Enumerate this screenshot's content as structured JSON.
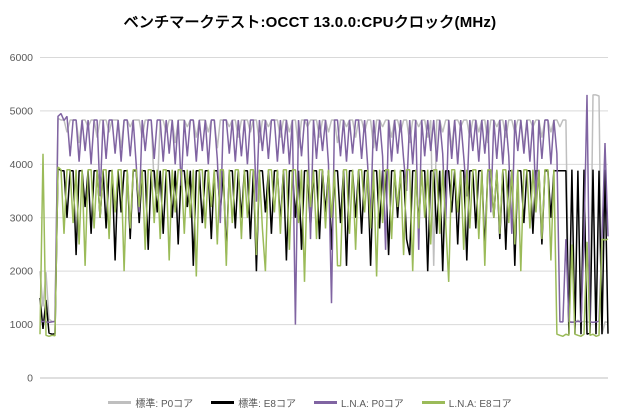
{
  "chart_data": {
    "type": "line",
    "title": "ベンチマークテスト:OCCT 13.0.0:CPUクロック(MHz)",
    "xlabel": "",
    "ylabel": "",
    "ylim": [
      0,
      6000
    ],
    "y_ticks": [
      0,
      1000,
      2000,
      3000,
      4000,
      5000,
      6000
    ],
    "x_tick_labels": [],
    "grid": true,
    "legend_position": "bottom",
    "gridline_color": "#d9d9d9",
    "axis_line_color": "#bfbfbf",
    "tick_label_color": "#595959",
    "series": [
      {
        "name": "標準: P0コア",
        "key": "std-p0",
        "color": "#bfbfbf",
        "values": [
          2000,
          1340,
          1980,
          1100,
          1060,
          1050,
          4860,
          4830,
          4830,
          4600,
          4830,
          4830,
          4830,
          4400,
          4830,
          4830,
          4700,
          4830,
          4830,
          4500,
          4830,
          4830,
          4830,
          4600,
          4830,
          4830,
          4830,
          4300,
          4830,
          4830,
          4700,
          4830,
          4830,
          4830,
          4500,
          4830,
          4830,
          4830,
          3600,
          3450,
          4830,
          4830,
          4600,
          4830,
          4830,
          4400,
          4830,
          4830,
          4830,
          4700,
          4830,
          4830,
          4500,
          4830,
          4830,
          4830,
          4600,
          4830,
          4830,
          4300,
          4830,
          4830,
          4830,
          4700,
          4830,
          4830,
          4500,
          4830,
          4830,
          4830,
          4600,
          4830,
          4830,
          4400,
          4830,
          4830,
          4700,
          4830,
          4830,
          4830,
          4500,
          4830,
          4830,
          4600,
          4830,
          4830,
          4300,
          4830,
          4830,
          4700,
          4830,
          4830,
          4830,
          4500,
          4830,
          4830,
          4600,
          4830,
          4830,
          4400,
          4830,
          4830,
          4700,
          4830,
          4830,
          4500,
          4830,
          4830,
          4600,
          4830,
          4830,
          4300,
          4830,
          4830,
          4700,
          4830,
          4830,
          4500,
          4830,
          4830,
          4600,
          4830,
          4830,
          4400,
          4830,
          4830,
          4700,
          4830,
          4830,
          4500,
          4830,
          2100,
          4830,
          4830,
          4600,
          4830,
          4830,
          4300,
          4830,
          4830,
          4700,
          4830,
          4830,
          4500,
          4830,
          4830,
          4600,
          4830,
          4830,
          4400,
          4830,
          4830,
          4700,
          4830,
          4830,
          4500,
          4830,
          4830,
          4600,
          4830,
          4830,
          4300,
          4830,
          4830,
          4700,
          4830,
          4830,
          4500,
          4830,
          4830,
          4600,
          4830,
          4830,
          4700,
          4830,
          4830,
          1060,
          1050,
          1040,
          1080,
          1050,
          1060,
          1050,
          1040,
          5300,
          5300,
          5280,
          820,
          1050,
          1040
        ]
      },
      {
        "name": "標準: E8コア",
        "key": "std-e8",
        "color": "#000000",
        "values": [
          1500,
          920,
          1460,
          840,
          820,
          830,
          3930,
          3880,
          3880,
          3000,
          3880,
          3880,
          2300,
          3880,
          3880,
          3200,
          3880,
          2700,
          3880,
          3880,
          3000,
          3880,
          2800,
          3880,
          3880,
          2200,
          3880,
          3100,
          3880,
          3880,
          2600,
          3880,
          3880,
          2900,
          3880,
          3880,
          2400,
          3880,
          3880,
          3100,
          3880,
          2700,
          3880,
          3880,
          3000,
          3880,
          2500,
          3880,
          3880,
          3200,
          3880,
          2100,
          3880,
          3880,
          2900,
          3880,
          3880,
          2600,
          3880,
          3880,
          3100,
          3880,
          2300,
          3880,
          3880,
          2800,
          3880,
          3000,
          3880,
          3880,
          2600,
          3880,
          2000,
          3880,
          3880,
          3100,
          3880,
          2700,
          3880,
          3880,
          2900,
          3880,
          2200,
          3880,
          3880,
          3000,
          3880,
          2400,
          3880,
          3880,
          2800,
          3880,
          3880,
          2600,
          3880,
          3100,
          3880,
          2400,
          3880,
          3880,
          2900,
          3880,
          2100,
          3880,
          3880,
          3000,
          3880,
          2700,
          3880,
          3880,
          2100,
          3880,
          3880,
          2800,
          3880,
          3880,
          2300,
          3880,
          3880,
          3000,
          3880,
          3880,
          2600,
          2300,
          3880,
          3880,
          2900,
          3880,
          3880,
          2000,
          3880,
          3880,
          2700,
          3880,
          2000,
          3880,
          3880,
          3100,
          3880,
          2500,
          3880,
          3880,
          2200,
          3880,
          3880,
          2800,
          3880,
          3880,
          2400,
          3880,
          3880,
          3000,
          3880,
          2600,
          3880,
          2400,
          3880,
          3880,
          2100,
          3880,
          3880,
          2900,
          3880,
          3880,
          2700,
          3880,
          3880,
          2500,
          3880,
          3880,
          3000,
          3880,
          3880,
          3880,
          3880,
          3880,
          820,
          3900,
          830,
          3880,
          820,
          3900,
          820,
          840,
          3900,
          820,
          3880,
          820,
          3900,
          830
        ]
      },
      {
        "name": "L.N.A: P0コア",
        "key": "lna-p0",
        "color": "#8064a2",
        "values": [
          1050,
          1060,
          1050,
          1040,
          1050,
          1060,
          4900,
          4950,
          4820,
          4900,
          4150,
          4830,
          4830,
          4050,
          4830,
          4250,
          4830,
          4000,
          4830,
          4830,
          3400,
          4830,
          4100,
          4830,
          4830,
          4200,
          4830,
          4050,
          4830,
          4830,
          4150,
          4830,
          4000,
          3100,
          4830,
          4250,
          4830,
          4830,
          4100,
          4830,
          4830,
          4050,
          4830,
          4200,
          4830,
          4000,
          4830,
          3600,
          4830,
          4150,
          4830,
          4830,
          4050,
          4830,
          4250,
          4830,
          4000,
          4830,
          4830,
          4100,
          2900,
          4830,
          4830,
          4200,
          4830,
          4050,
          4830,
          4150,
          4830,
          4000,
          4830,
          4830,
          3300,
          4830,
          4250,
          4830,
          4100,
          4830,
          4830,
          4050,
          4830,
          4200,
          4830,
          4000,
          4830,
          1000,
          4830,
          4150,
          4830,
          4830,
          2600,
          4830,
          4100,
          4830,
          4250,
          4830,
          4000,
          1400,
          4830,
          4830,
          4150,
          4830,
          4050,
          4830,
          4200,
          4830,
          4830,
          4100,
          4830,
          4000,
          3000,
          4830,
          4250,
          4830,
          4150,
          2400,
          4830,
          4050,
          4830,
          4200,
          4830,
          4100,
          3500,
          4830,
          4000,
          4830,
          2400,
          4830,
          4150,
          4830,
          4250,
          4830,
          4050,
          4830,
          4200,
          2900,
          4830,
          4100,
          4830,
          4000,
          4830,
          4150,
          3400,
          4830,
          4250,
          4830,
          4050,
          4830,
          4200,
          4830,
          3100,
          4830,
          4100,
          4830,
          4000,
          4830,
          4150,
          2700,
          4830,
          4250,
          4830,
          4200,
          4830,
          4050,
          4830,
          3300,
          4830,
          4100,
          4830,
          4830,
          4000,
          4830,
          4200,
          1050,
          1050,
          2600,
          1050,
          1040,
          1050,
          1060,
          1050,
          2600,
          5300,
          1050,
          1040,
          1050,
          1060,
          2600,
          4400,
          2650
        ]
      },
      {
        "name": "L.N.A: E8コア",
        "key": "lna-e8",
        "color": "#9bbb59",
        "values": [
          820,
          4200,
          800,
          780,
          800,
          790,
          3950,
          3900,
          2700,
          3900,
          3900,
          2900,
          3900,
          2500,
          3900,
          2100,
          3900,
          3900,
          2800,
          3900,
          3000,
          3900,
          3900,
          2600,
          3900,
          3100,
          3900,
          3900,
          2000,
          3900,
          2800,
          3900,
          3900,
          3200,
          3900,
          2400,
          3900,
          3900,
          2900,
          3900,
          2600,
          3900,
          3900,
          2200,
          3900,
          3100,
          3900,
          3900,
          2700,
          3900,
          3000,
          3900,
          1900,
          3900,
          3900,
          2800,
          3900,
          3200,
          3900,
          2500,
          3900,
          3900,
          2100,
          3900,
          2900,
          3900,
          3900,
          2600,
          3900,
          3000,
          3900,
          3900,
          2300,
          3900,
          2800,
          2000,
          3900,
          3900,
          3100,
          3900,
          2700,
          3900,
          3900,
          2400,
          3900,
          3900,
          2900,
          3900,
          1800,
          3900,
          3200,
          3900,
          2600,
          3900,
          3900,
          2800,
          3900,
          3000,
          3900,
          2100,
          2100,
          3900,
          3900,
          2700,
          3900,
          2400,
          3900,
          3900,
          3100,
          3900,
          2800,
          3900,
          1900,
          3900,
          2900,
          3900,
          3900,
          2600,
          3900,
          3200,
          3900,
          2300,
          3900,
          3900,
          2000,
          3900,
          2800,
          3900,
          3000,
          3900,
          2500,
          3900,
          3900,
          2700,
          3900,
          2900,
          1800,
          3900,
          3900,
          3100,
          3900,
          2400,
          3900,
          2800,
          3900,
          3900,
          2600,
          3900,
          2100,
          3900,
          3900,
          3000,
          3900,
          2700,
          3900,
          3900,
          2900,
          3900,
          2500,
          3900,
          2000,
          3900,
          3900,
          2800,
          3900,
          3100,
          3900,
          2600,
          3900,
          3900,
          2200,
          3900,
          820,
          800,
          780,
          820,
          800,
          2500,
          820,
          800,
          780,
          820,
          2550,
          800,
          820,
          780,
          800,
          2600,
          2580,
          2600
        ]
      }
    ]
  }
}
